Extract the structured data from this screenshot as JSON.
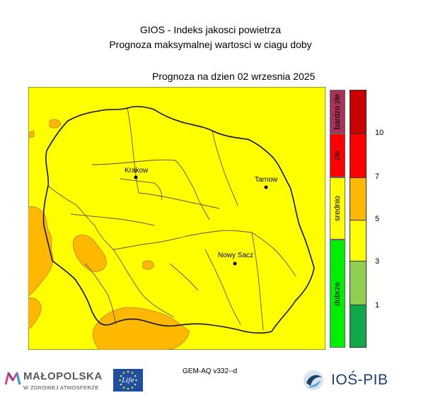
{
  "header": {
    "title": "GIOS - Indeks jakosci powietrza",
    "subtitle": "Prognoza maksymalnej wartosci w ciagu doby",
    "forecast_date": "Prognoza na dzien  02 wrzesnia 2025"
  },
  "map": {
    "cities": [
      {
        "name": "Krakow"
      },
      {
        "name": "Tarnow"
      },
      {
        "name": "Nowy Sacz"
      }
    ],
    "colors": {
      "background": "#ffff00",
      "hotspot": "#ffb800",
      "boundary": "#5a3a1a"
    }
  },
  "legend": {
    "categories": [
      {
        "label": "bardzo złe",
        "color": "#a8325a"
      },
      {
        "label": "złe",
        "color": "#ff0000"
      },
      {
        "label": "srednio",
        "color": "#ffff00"
      },
      {
        "label": "dobrze",
        "color": "#00ee00"
      }
    ],
    "scale_colors": [
      "#c80000",
      "#ff0000",
      "#ffb800",
      "#ffff00",
      "#90d050",
      "#10a848"
    ],
    "ticks": [
      "10",
      "7",
      "5",
      "3",
      "1"
    ]
  },
  "footer": {
    "model": "GEM-AQ v332--d",
    "malopolska_logo": {
      "name": "MAŁOPOLSKA",
      "tagline": "W ZDROWEJ ATMOSFERZE"
    },
    "eu_logo": {
      "text": "Life"
    },
    "ios_logo": {
      "text": "IOŚ-PIB"
    }
  }
}
